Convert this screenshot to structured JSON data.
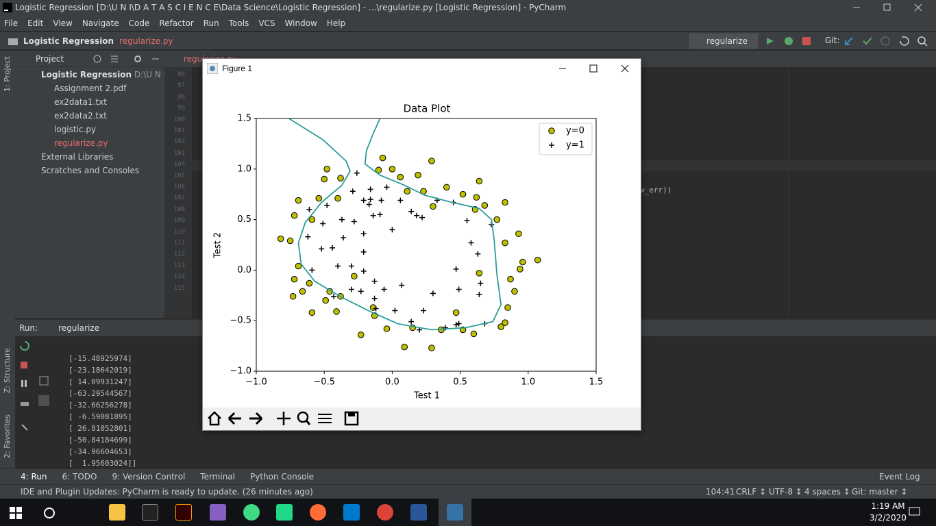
{
  "window": {
    "title": "Logistic Regression [D:\\U N I\\D A T A  S C I E N C E\\Data Science\\Logistic Regression] - ...\\regularize.py [Logistic Regression] - PyCharm"
  },
  "menu": [
    "File",
    "Edit",
    "View",
    "Navigate",
    "Code",
    "Refactor",
    "Run",
    "Tools",
    "VCS",
    "Window",
    "Help"
  ],
  "breadcrumb": {
    "project": "Logistic Regression",
    "file": "regularize.py"
  },
  "toolbar": {
    "run_config": "regularize",
    "git": "Git:"
  },
  "side_tabs": {
    "project": "1: Project",
    "structure": "Z: Structure",
    "favorites": "2: Favorites"
  },
  "project": {
    "header": "Project",
    "root": "Logistic Regression",
    "root_path": "D:\\U N I\\D A",
    "files": [
      "Assignment 2.pdf",
      "ex2data1.txt",
      "ex2data2.txt",
      "logistic.py",
      "regularize.py"
    ],
    "external": "External Libraries",
    "scratches": "Scratches and Consoles"
  },
  "editor": {
    "tab": "regularize.py",
    "line_numbers": [
      96,
      97,
      98,
      99,
      100,
      101,
      102,
      103,
      104,
      105,
      106,
      107,
      108,
      109,
      110,
      111,
      112,
      113,
      114,
      115
    ],
    "code_fragment": "w_err))"
  },
  "run": {
    "label": "Run:",
    "tab": "regularize",
    "output": [
      "[-15.48925974]",
      "[-23.18642019]",
      "[ 14.09931247]",
      "[-63.29544567]",
      "[-32.66256278]",
      "[ -6.59081895]",
      "[ 26.81052801]",
      "[-50.84184699]",
      "[-34.96604653]",
      "[  1.95603024]]"
    ]
  },
  "figure": {
    "title": "Figure 1"
  },
  "chart_data": {
    "type": "scatter",
    "title": "Data Plot",
    "x_label": "Test 1",
    "y_label": "Test 2",
    "xlim": [
      -1.0,
      1.5
    ],
    "ylim": [
      -1.0,
      1.5
    ],
    "xticks": [
      {
        "value": -1.0,
        "label": "−1.0"
      },
      {
        "value": -0.5,
        "label": "−0.5"
      },
      {
        "value": 0,
        "label": "0.0"
      },
      {
        "value": 0.5,
        "label": "0.5"
      },
      {
        "value": 1.0,
        "label": "1.0"
      },
      {
        "value": 1.5,
        "label": "1.5"
      }
    ],
    "yticks": [
      {
        "value": -1.0,
        "label": "−1.0"
      },
      {
        "value": -0.5,
        "label": "−0.5"
      },
      {
        "value": 0,
        "label": "0.0"
      },
      {
        "value": 0.5,
        "label": "0.5"
      },
      {
        "value": 1.0,
        "label": "1.0"
      },
      {
        "value": 1.5,
        "label": "1.5"
      }
    ],
    "legend": "upper right",
    "series": [
      {
        "name": "y=0",
        "color": "#bfbf00",
        "marker": "o",
        "x": [
          -0.07,
          0.29,
          -0.48,
          -0.1,
          0.0,
          -0.38,
          -0.5,
          0.06,
          0.19,
          0.4,
          0.64,
          0.23,
          0.52,
          0.11,
          -0.69,
          -0.54,
          -0.4,
          0.62,
          0.68,
          0.83,
          0.3,
          0.61,
          0.77,
          -0.72,
          -0.59,
          0.83,
          0.93,
          -0.82,
          -0.75,
          0.96,
          1.07,
          0.94,
          -0.69,
          -0.28,
          0.64,
          0.87,
          -0.72,
          -0.66,
          0.9,
          -0.73,
          -0.46,
          -0.38,
          -0.49,
          0.85,
          -0.59,
          -0.41,
          -0.14,
          0.47,
          -0.13,
          0.83,
          0.8,
          -0.04,
          0.15,
          0.52,
          0.36,
          -0.23,
          0.6,
          0.09,
          0.29,
          -0.61
        ],
        "y": [
          1.11,
          1.08,
          1.0,
          0.99,
          1.0,
          0.91,
          0.9,
          0.92,
          0.94,
          0.82,
          0.88,
          0.78,
          0.75,
          0.78,
          0.69,
          0.71,
          0.71,
          0.72,
          0.64,
          0.67,
          0.63,
          0.6,
          0.5,
          0.54,
          0.5,
          0.27,
          0.36,
          0.31,
          0.29,
          0.08,
          0.1,
          0.01,
          0.04,
          -0.06,
          -0.03,
          -0.09,
          -0.09,
          -0.21,
          -0.21,
          -0.26,
          -0.21,
          -0.26,
          -0.3,
          -0.37,
          -0.42,
          -0.41,
          -0.37,
          -0.42,
          -0.45,
          -0.52,
          -0.56,
          -0.58,
          -0.57,
          -0.59,
          -0.59,
          -0.64,
          -0.63,
          -0.76,
          -0.77,
          -0.13
        ]
      },
      {
        "name": "y=1",
        "color": "#000000",
        "marker": "+",
        "x": [
          -0.26,
          -0.16,
          -0.29,
          -0.04,
          -0.21,
          -0.16,
          -0.08,
          -0.17,
          0.06,
          0.14,
          0.18,
          0.22,
          0.33,
          0.45,
          -0.48,
          -0.61,
          -0.14,
          -0.09,
          -0.37,
          -0.28,
          -0.51,
          0.55,
          0.73,
          -0.62,
          -0.21,
          0.0,
          -0.36,
          0.58,
          -0.52,
          -0.44,
          -0.21,
          0.63,
          -0.59,
          -0.4,
          -0.3,
          -0.21,
          0.47,
          0.65,
          -0.3,
          -0.23,
          -0.43,
          -0.13,
          -0.06,
          0.07,
          0.3,
          0.49,
          0.64,
          0.02,
          -0.12,
          0.23,
          0.14,
          0.2,
          0.39,
          0.49,
          0.68,
          0.47,
          -0.13
        ],
        "y": [
          0.96,
          0.8,
          0.78,
          0.82,
          0.69,
          0.7,
          0.69,
          0.65,
          0.69,
          0.58,
          0.54,
          0.52,
          0.69,
          0.67,
          0.64,
          0.6,
          0.54,
          0.55,
          0.5,
          0.48,
          0.46,
          0.49,
          0.45,
          0.33,
          0.36,
          0.4,
          0.32,
          0.27,
          0.21,
          0.22,
          0.18,
          0.16,
          0.0,
          0.04,
          0.04,
          -0.01,
          0.01,
          -0.13,
          -0.19,
          -0.21,
          -0.26,
          -0.28,
          -0.19,
          -0.15,
          -0.23,
          -0.19,
          -0.24,
          -0.4,
          -0.38,
          -0.4,
          -0.51,
          -0.59,
          -0.57,
          -0.53,
          -0.53,
          -0.54,
          -0.11
        ]
      }
    ],
    "boundary": {
      "color": "#2a9d9b",
      "x": [
        -0.76,
        -0.51,
        -0.34,
        -0.31,
        -0.37,
        -0.52,
        -0.64,
        -0.69,
        -0.67,
        -0.57,
        -0.37,
        -0.16,
        0.04,
        0.29,
        0.54,
        0.74,
        0.8,
        0.77,
        0.75,
        0.73,
        0.64,
        0.44,
        0.24,
        0.09,
        -0.09,
        -0.2,
        -0.19,
        -0.14,
        -0.09
      ],
      "y": [
        1.5,
        1.29,
        1.08,
        0.98,
        0.84,
        0.67,
        0.47,
        0.27,
        0.06,
        -0.11,
        -0.27,
        -0.41,
        -0.53,
        -0.59,
        -0.57,
        -0.51,
        -0.34,
        -0.04,
        0.3,
        0.5,
        0.61,
        0.67,
        0.74,
        0.84,
        0.94,
        1.05,
        1.18,
        1.35,
        1.5
      ]
    }
  },
  "tool_tabs": [
    "4: Run",
    "6: TODO",
    "9: Version Control",
    "Terminal",
    "Python Console"
  ],
  "event_log": "Event Log",
  "status": {
    "message": "IDE and Plugin Updates: PyCharm is ready to update. (26 minutes ago)",
    "position": "104:41",
    "line_sep": "CRLF ↕",
    "encoding": "UTF-8 ↕",
    "indent": "4 spaces ↕",
    "branch": "Git: master ↕"
  },
  "taskbar": {
    "time": "1:19 AM",
    "date": "3/2/2020"
  }
}
